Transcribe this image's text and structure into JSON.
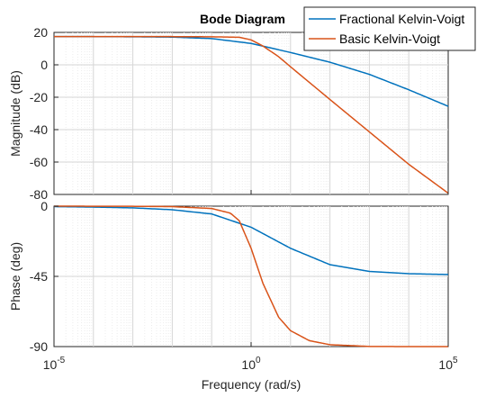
{
  "chart_data": {
    "type": "line",
    "title": "Bode Diagram",
    "xlabel": "Frequency  (rad/s)",
    "x_scale": "log",
    "xlim": [
      1e-05,
      100000.0
    ],
    "x_ticks": [
      {
        "base": "10",
        "exp": "-5"
      },
      {
        "base": "10",
        "exp": "0"
      },
      {
        "base": "10",
        "exp": "5"
      }
    ],
    "grid": true,
    "legend_position": "top-right",
    "legend": [
      "Fractional Kelvin-Voigt",
      "Basic Kelvin-Voigt"
    ],
    "colors": {
      "fractional": "#0072BD",
      "basic": "#D95319",
      "grid": "#dcdcdc",
      "axes": "#262626"
    },
    "panels": [
      {
        "name": "magnitude",
        "ylabel": "Magnitude (dB)",
        "ylim": [
          -80,
          20
        ],
        "y_ticks": [
          "20",
          "0",
          "-20",
          "-40",
          "-60",
          "-80"
        ],
        "series": [
          {
            "name": "Fractional Kelvin-Voigt",
            "x": [
              1e-05,
              0.0001,
              0.001,
              0.01,
              0.1,
              1,
              10,
              100,
              1000,
              10000,
              100000
            ],
            "y": [
              17.4,
              17.4,
              17.3,
              17.1,
              16.2,
              13.2,
              7.6,
              1.6,
              -5.9,
              -15.4,
              -25.6
            ]
          },
          {
            "name": "Basic Kelvin-Voigt",
            "x": [
              1e-05,
              0.0001,
              0.001,
              0.01,
              0.1,
              0.5,
              1,
              2,
              5,
              10,
              100,
              1000,
              10000,
              100000
            ],
            "y": [
              17.4,
              17.4,
              17.4,
              17.4,
              17.3,
              17.0,
              15.4,
              11.6,
              5.0,
              -1.2,
              -21.4,
              -41.4,
              -61.4,
              -79.2
            ]
          }
        ]
      },
      {
        "name": "phase",
        "ylabel": "Phase (deg)",
        "ylim": [
          -90,
          0
        ],
        "y_ticks": [
          "0",
          "-45",
          "-90"
        ],
        "series": [
          {
            "name": "Fractional Kelvin-Voigt",
            "x": [
              1e-05,
              0.0001,
              0.001,
              0.01,
              0.1,
              1,
              10,
              100,
              1000,
              10000,
              100000
            ],
            "y": [
              -0.3,
              -0.6,
              -1.1,
              -2.3,
              -5.0,
              -13.5,
              -27.0,
              -37.5,
              -41.8,
              -43.3,
              -43.8
            ]
          },
          {
            "name": "Basic Kelvin-Voigt",
            "x": [
              1e-05,
              0.0001,
              0.001,
              0.01,
              0.1,
              0.3,
              0.5,
              1,
              2,
              5,
              10,
              30,
              100,
              1000,
              10000,
              100000
            ],
            "y": [
              0,
              -0.05,
              -0.1,
              -0.3,
              -1.5,
              -4.5,
              -9.3,
              -27.0,
              -49.5,
              -71.2,
              -79.8,
              -86.2,
              -88.8,
              -89.9,
              -90,
              -90
            ]
          }
        ]
      }
    ]
  }
}
